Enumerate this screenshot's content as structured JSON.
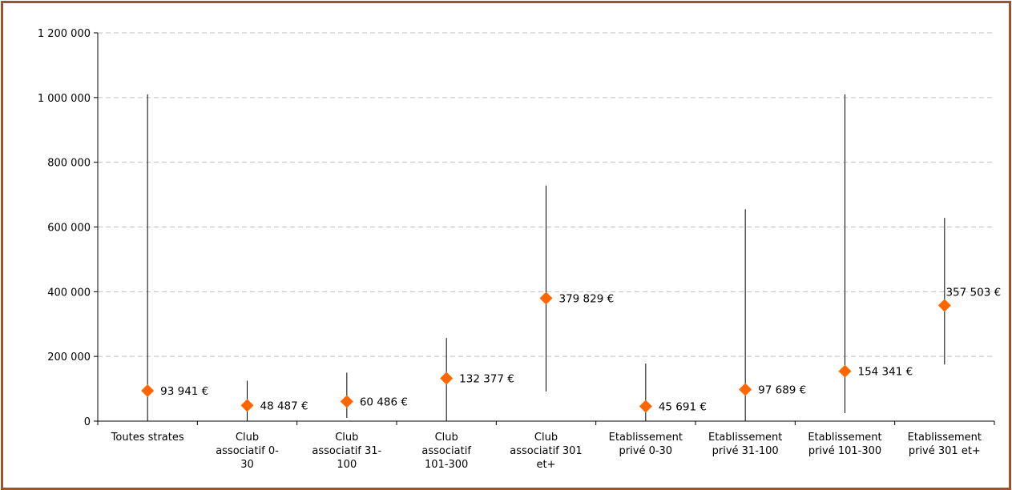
{
  "chart_data": {
    "type": "scatter",
    "variant": "high-low-mean",
    "title": "",
    "xlabel": "",
    "ylabel": "",
    "ylim": [
      0,
      1200000
    ],
    "yticks": [
      0,
      200000,
      400000,
      600000,
      800000,
      1000000,
      1200000
    ],
    "ytick_labels": [
      "0",
      "200 000",
      "400 000",
      "600 000",
      "800 000",
      "1 000 000",
      "1 200 000"
    ],
    "grid": "horizontal dashed",
    "legend": "none",
    "marker_color": "#ff6600",
    "line_color": "#000000",
    "categories": [
      {
        "label": [
          "Toutes strates"
        ],
        "high": 1010000,
        "low": 0,
        "mean": 93941,
        "mean_label": "93 941 €"
      },
      {
        "label": [
          "Club",
          "associatif 0-",
          "30"
        ],
        "high": 125000,
        "low": 0,
        "mean": 48487,
        "mean_label": "48 487 €"
      },
      {
        "label": [
          "Club",
          "associatif 31-",
          "100"
        ],
        "high": 150000,
        "low": 10000,
        "mean": 60486,
        "mean_label": "60 486 €"
      },
      {
        "label": [
          "Club",
          "associatif",
          "101-300"
        ],
        "high": 257000,
        "low": 0,
        "mean": 132377,
        "mean_label": "132 377 €"
      },
      {
        "label": [
          "Club",
          "associatif 301",
          "et+"
        ],
        "high": 728000,
        "low": 92000,
        "mean": 379829,
        "mean_label": "379 829 €"
      },
      {
        "label": [
          "Etablissement",
          "privé 0-30"
        ],
        "high": 178000,
        "low": 0,
        "mean": 45691,
        "mean_label": "45 691 €"
      },
      {
        "label": [
          "Etablissement",
          "privé 31-100"
        ],
        "high": 655000,
        "low": 0,
        "mean": 97689,
        "mean_label": "97 689 €"
      },
      {
        "label": [
          "Etablissement",
          "privé 101-300"
        ],
        "high": 1010000,
        "low": 25000,
        "mean": 154341,
        "mean_label": "154 341 €"
      },
      {
        "label": [
          "Etablissement",
          "privé 301 et+"
        ],
        "high": 628000,
        "low": 175000,
        "mean": 357503,
        "mean_label": "357 503 €"
      }
    ]
  }
}
